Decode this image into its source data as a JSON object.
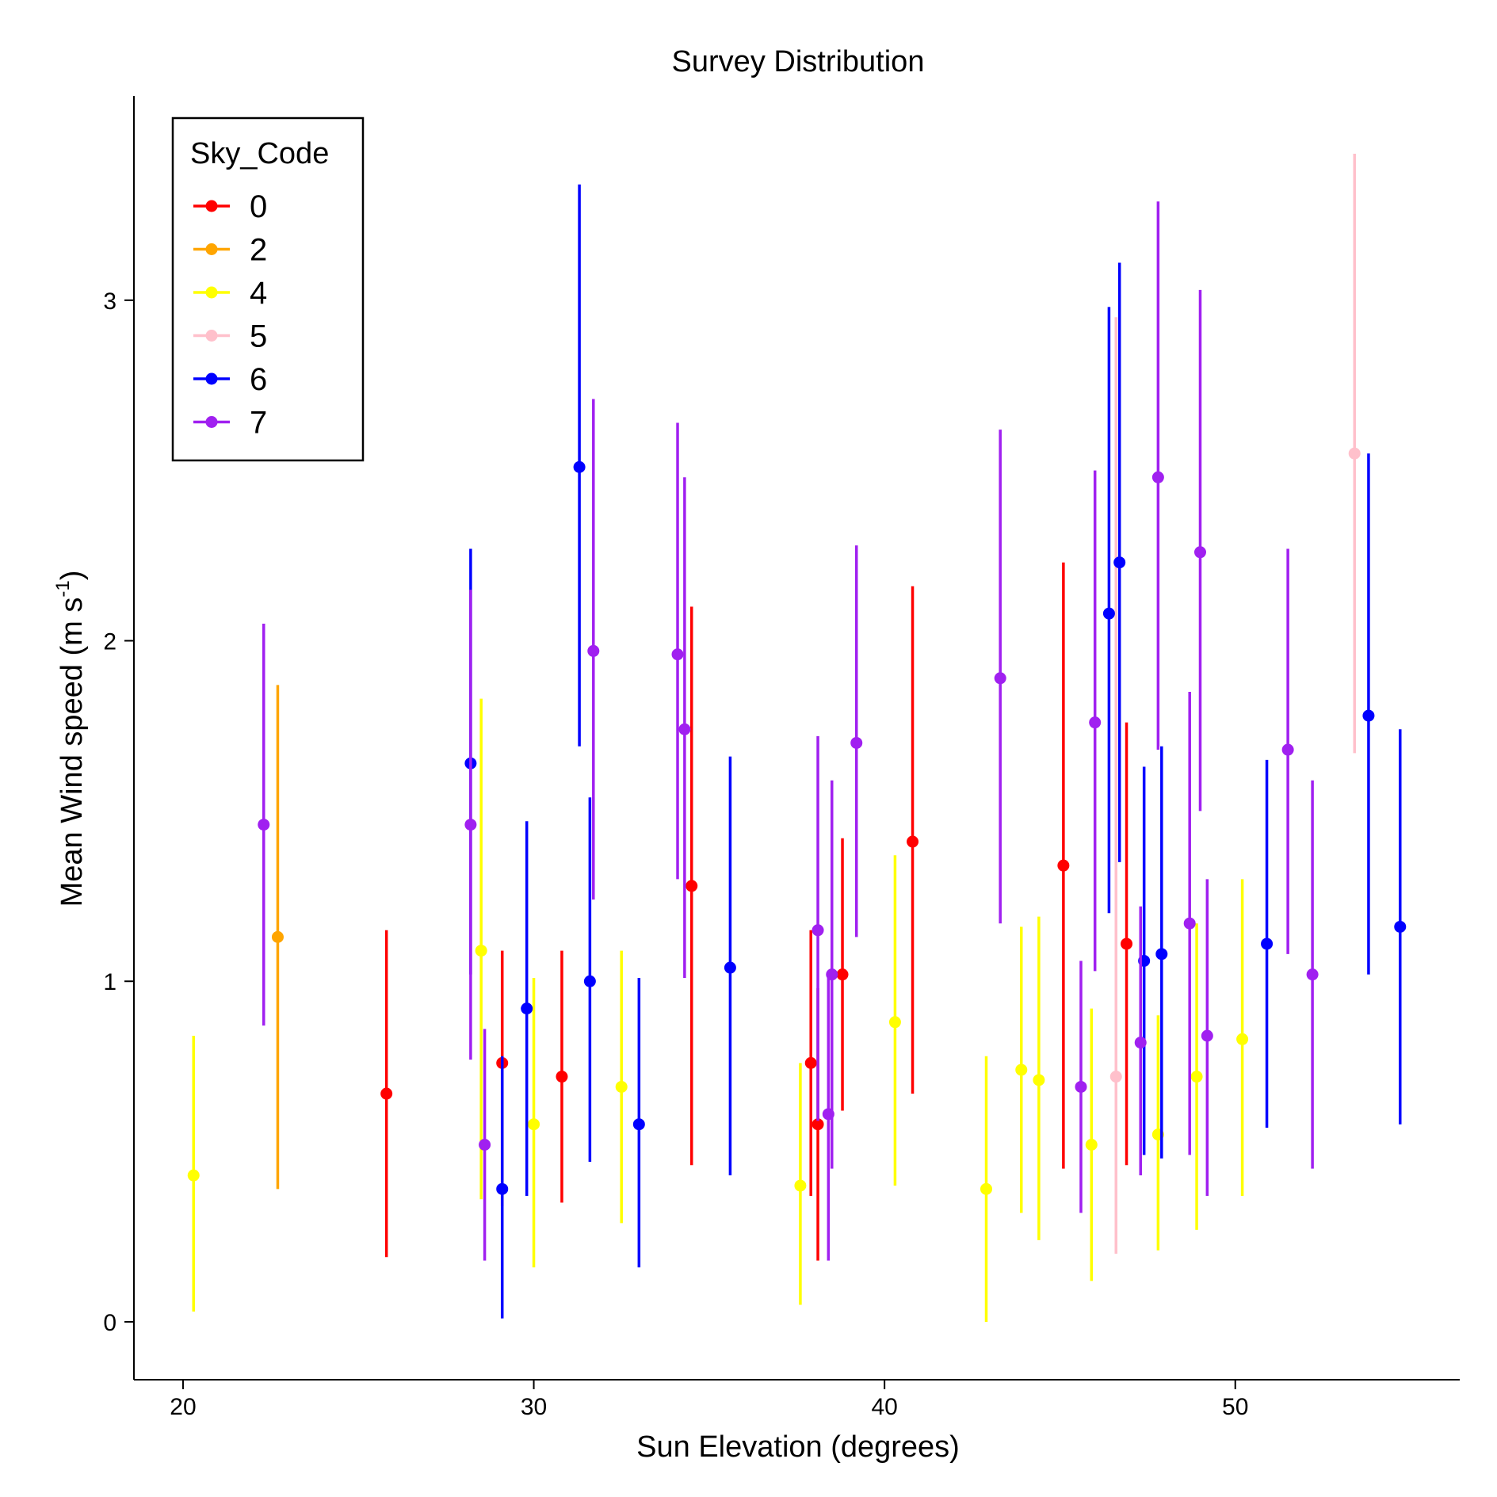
{
  "chart_data": {
    "type": "scatter",
    "title": "Survey Distribution",
    "xlabel": "Sun Elevation (degrees)",
    "ylabel_main": "Mean Wind speed (m s",
    "ylabel_sup": "-1",
    "ylabel_close": ")",
    "xlim": [
      18.6,
      56.4
    ],
    "ylim": [
      -0.17,
      3.6
    ],
    "x_ticks": [
      20,
      30,
      40,
      50
    ],
    "y_ticks": [
      0,
      1,
      2,
      3
    ],
    "grid": false,
    "legend": {
      "title": "Sky_Code",
      "position": "top-left",
      "entries": [
        {
          "label": "0",
          "color": "#FF0000"
        },
        {
          "label": "2",
          "color": "#FFA500"
        },
        {
          "label": "4",
          "color": "#FFFF00"
        },
        {
          "label": "5",
          "color": "#FFC0CB"
        },
        {
          "label": "6",
          "color": "#0000FF"
        },
        {
          "label": "7",
          "color": "#A020F0"
        }
      ]
    },
    "series": [
      {
        "name": "0",
        "color": "#FF0000",
        "points": [
          {
            "x": 25.8,
            "y": 0.67,
            "lo": 0.19,
            "hi": 1.15
          },
          {
            "x": 29.1,
            "y": 0.76,
            "lo": 0.34,
            "hi": 1.09
          },
          {
            "x": 30.8,
            "y": 0.72,
            "lo": 0.35,
            "hi": 1.09
          },
          {
            "x": 34.5,
            "y": 1.28,
            "lo": 0.46,
            "hi": 2.1
          },
          {
            "x": 37.9,
            "y": 0.76,
            "lo": 0.37,
            "hi": 1.15
          },
          {
            "x": 38.1,
            "y": 0.58,
            "lo": 0.18,
            "hi": 0.98
          },
          {
            "x": 38.8,
            "y": 1.02,
            "lo": 0.62,
            "hi": 1.42
          },
          {
            "x": 40.8,
            "y": 1.41,
            "lo": 0.67,
            "hi": 2.16
          },
          {
            "x": 45.1,
            "y": 1.34,
            "lo": 0.45,
            "hi": 2.23
          },
          {
            "x": 46.9,
            "y": 1.11,
            "lo": 0.46,
            "hi": 1.76
          }
        ]
      },
      {
        "name": "2",
        "color": "#FFA500",
        "points": [
          {
            "x": 22.7,
            "y": 1.13,
            "lo": 0.39,
            "hi": 1.87
          }
        ]
      },
      {
        "name": "4",
        "color": "#FFFF00",
        "points": [
          {
            "x": 20.3,
            "y": 0.43,
            "lo": 0.03,
            "hi": 0.84
          },
          {
            "x": 28.5,
            "y": 1.09,
            "lo": 0.36,
            "hi": 1.83
          },
          {
            "x": 30.0,
            "y": 0.58,
            "lo": 0.16,
            "hi": 1.01
          },
          {
            "x": 32.5,
            "y": 0.69,
            "lo": 0.29,
            "hi": 1.09
          },
          {
            "x": 37.6,
            "y": 0.4,
            "lo": 0.05,
            "hi": 0.76
          },
          {
            "x": 40.3,
            "y": 0.88,
            "lo": 0.4,
            "hi": 1.37
          },
          {
            "x": 42.9,
            "y": 0.39,
            "lo": 0.0,
            "hi": 0.78
          },
          {
            "x": 43.9,
            "y": 0.74,
            "lo": 0.32,
            "hi": 1.16
          },
          {
            "x": 44.4,
            "y": 0.71,
            "lo": 0.24,
            "hi": 1.19
          },
          {
            "x": 45.9,
            "y": 0.52,
            "lo": 0.12,
            "hi": 0.92
          },
          {
            "x": 47.8,
            "y": 0.55,
            "lo": 0.21,
            "hi": 0.9
          },
          {
            "x": 48.9,
            "y": 0.72,
            "lo": 0.27,
            "hi": 1.17
          },
          {
            "x": 50.2,
            "y": 0.83,
            "lo": 0.37,
            "hi": 1.3
          }
        ]
      },
      {
        "name": "5",
        "color": "#FFC0CB",
        "points": [
          {
            "x": 53.4,
            "y": 2.55,
            "lo": 1.67,
            "hi": 3.43
          },
          {
            "x": 46.6,
            "y": 0.72,
            "lo": 0.2,
            "hi": 2.95
          }
        ]
      },
      {
        "name": "6",
        "color": "#0000FF",
        "points": [
          {
            "x": 28.2,
            "y": 1.64,
            "lo": 1.02,
            "hi": 2.27
          },
          {
            "x": 29.1,
            "y": 0.39,
            "lo": 0.01,
            "hi": 0.78
          },
          {
            "x": 29.8,
            "y": 0.92,
            "lo": 0.37,
            "hi": 1.47
          },
          {
            "x": 31.3,
            "y": 2.51,
            "lo": 1.69,
            "hi": 3.34
          },
          {
            "x": 31.6,
            "y": 1.0,
            "lo": 0.47,
            "hi": 1.54
          },
          {
            "x": 33.0,
            "y": 0.58,
            "lo": 0.16,
            "hi": 1.01
          },
          {
            "x": 35.6,
            "y": 1.04,
            "lo": 0.43,
            "hi": 1.66
          },
          {
            "x": 46.4,
            "y": 2.08,
            "lo": 1.2,
            "hi": 2.98
          },
          {
            "x": 46.7,
            "y": 2.23,
            "lo": 1.35,
            "hi": 3.11
          },
          {
            "x": 47.4,
            "y": 1.06,
            "lo": 0.49,
            "hi": 1.63
          },
          {
            "x": 47.9,
            "y": 1.08,
            "lo": 0.48,
            "hi": 1.69
          },
          {
            "x": 50.9,
            "y": 1.11,
            "lo": 0.57,
            "hi": 1.65
          },
          {
            "x": 53.8,
            "y": 1.78,
            "lo": 1.02,
            "hi": 2.55
          },
          {
            "x": 54.7,
            "y": 1.16,
            "lo": 0.58,
            "hi": 1.74
          }
        ]
      },
      {
        "name": "7",
        "color": "#A020F0",
        "points": [
          {
            "x": 22.3,
            "y": 1.46,
            "lo": 0.87,
            "hi": 2.05
          },
          {
            "x": 28.2,
            "y": 1.46,
            "lo": 0.77,
            "hi": 2.15
          },
          {
            "x": 28.6,
            "y": 0.52,
            "lo": 0.18,
            "hi": 0.86
          },
          {
            "x": 31.7,
            "y": 1.97,
            "lo": 1.24,
            "hi": 2.71
          },
          {
            "x": 34.1,
            "y": 1.96,
            "lo": 1.3,
            "hi": 2.64
          },
          {
            "x": 34.3,
            "y": 1.74,
            "lo": 1.01,
            "hi": 2.48
          },
          {
            "x": 38.1,
            "y": 1.15,
            "lo": 0.59,
            "hi": 1.72
          },
          {
            "x": 38.4,
            "y": 0.61,
            "lo": 0.18,
            "hi": 1.03
          },
          {
            "x": 38.5,
            "y": 1.02,
            "lo": 0.45,
            "hi": 1.59
          },
          {
            "x": 39.2,
            "y": 1.7,
            "lo": 1.13,
            "hi": 2.28
          },
          {
            "x": 43.3,
            "y": 1.89,
            "lo": 1.17,
            "hi": 2.62
          },
          {
            "x": 45.6,
            "y": 0.69,
            "lo": 0.32,
            "hi": 1.06
          },
          {
            "x": 46.0,
            "y": 1.76,
            "lo": 1.03,
            "hi": 2.5
          },
          {
            "x": 47.3,
            "y": 0.82,
            "lo": 0.43,
            "hi": 1.22
          },
          {
            "x": 47.8,
            "y": 2.48,
            "lo": 1.68,
            "hi": 3.29
          },
          {
            "x": 48.7,
            "y": 1.17,
            "lo": 0.49,
            "hi": 1.85
          },
          {
            "x": 49.0,
            "y": 2.26,
            "lo": 1.5,
            "hi": 3.03
          },
          {
            "x": 49.2,
            "y": 0.84,
            "lo": 0.37,
            "hi": 1.3
          },
          {
            "x": 51.5,
            "y": 1.68,
            "lo": 1.08,
            "hi": 2.27
          },
          {
            "x": 52.2,
            "y": 1.02,
            "lo": 0.45,
            "hi": 1.59
          }
        ]
      }
    ]
  }
}
